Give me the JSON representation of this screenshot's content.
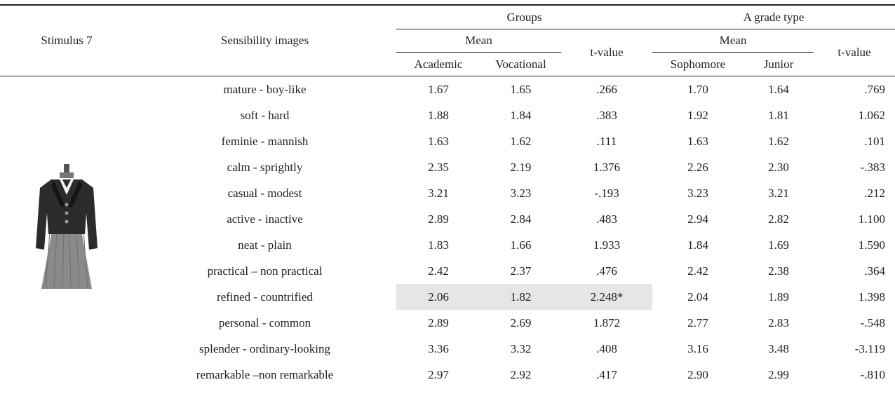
{
  "header": {
    "stimulus": "Stimulus 7",
    "sensibility": "Sensibility images",
    "groups": "Groups",
    "grade_type": "A grade type",
    "mean_1": "Mean",
    "t_value_1": "t-value",
    "mean_2": "Mean",
    "t_value_2": "t-value",
    "academic": "Academic",
    "vocational": "Vocational",
    "sophomore": "Sophomore",
    "junior": "Junior"
  },
  "table": {
    "rows": [
      [
        "mature - boy-like",
        "1.67",
        "1.65",
        ".266",
        "1.70",
        "1.64",
        ".769"
      ],
      [
        "soft - hard",
        "1.88",
        "1.84",
        ".383",
        "1.92",
        "1.81",
        "1.062"
      ],
      [
        "feminie - mannish",
        "1.63",
        "1.62",
        ".111",
        "1.63",
        "1.62",
        ".101"
      ],
      [
        "calm - sprightly",
        "2.35",
        "2.19",
        "1.376",
        "2.26",
        "2.30",
        "-.383"
      ],
      [
        "casual - modest",
        "3.21",
        "3.23",
        "-.193",
        "3.23",
        "3.21",
        ".212"
      ],
      [
        "active - inactive",
        "2.89",
        "2.84",
        ".483",
        "2.94",
        "2.82",
        "1.100"
      ],
      [
        "neat - plain",
        "1.83",
        "1.66",
        "1.933",
        "1.84",
        "1.69",
        "1.590"
      ],
      [
        "practical – non practical",
        "2.42",
        "2.37",
        ".476",
        "2.42",
        "2.38",
        ".364"
      ],
      [
        "refined - countrified",
        "2.06",
        "1.82",
        "2.248*",
        "2.04",
        "1.89",
        "1.398"
      ],
      [
        "personal - common",
        "2.89",
        "2.69",
        "1.872",
        "2.77",
        "2.83",
        "-.548"
      ],
      [
        "splender - ordinary-looking",
        "3.36",
        "3.32",
        ".408",
        "3.16",
        "3.48",
        "-3.119"
      ],
      [
        "remarkable –non remarkable",
        "2.97",
        "2.92",
        ".417",
        "2.90",
        "2.99",
        "-.810"
      ]
    ]
  }
}
